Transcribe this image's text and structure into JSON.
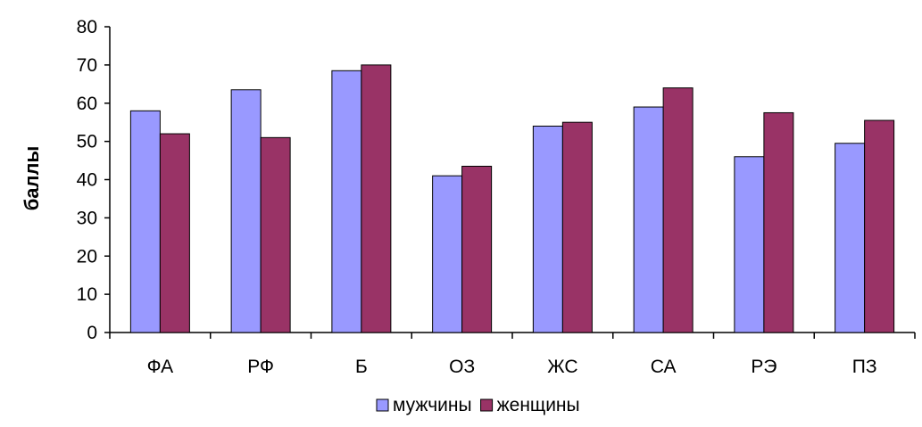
{
  "chart_data": {
    "type": "bar",
    "categories": [
      "ФА",
      "РФ",
      "Б",
      "ОЗ",
      "ЖС",
      "СА",
      "РЭ",
      "ПЗ"
    ],
    "series": [
      {
        "name": "мужчины",
        "values": [
          58,
          63.5,
          68.5,
          41,
          54,
          59,
          46,
          49.5
        ],
        "color": "#9999ff"
      },
      {
        "name": "женщины",
        "values": [
          52,
          51,
          70,
          43.5,
          55,
          64,
          57.5,
          55.5
        ],
        "color": "#993366"
      }
    ],
    "xlabel": "",
    "ylabel": "баллы",
    "ylim": [
      0,
      80
    ],
    "yticks": [
      0,
      10,
      20,
      30,
      40,
      50,
      60,
      70,
      80
    ],
    "legend_position": "bottom",
    "grid": false
  }
}
